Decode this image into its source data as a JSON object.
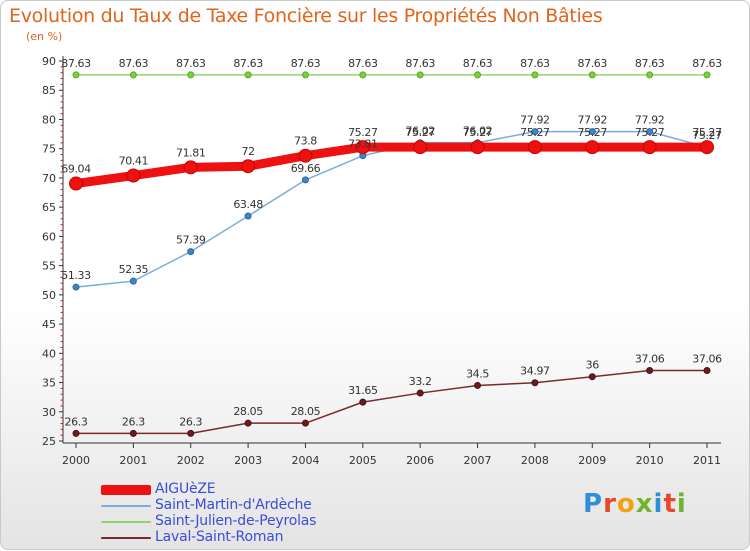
{
  "header": {
    "title": "Evolution du Taux de Taxe Foncière sur les Propriétés Non Bâties",
    "unit_label": "(en %)"
  },
  "brand": {
    "name": "Proxiti",
    "letters": [
      {
        "char": "P",
        "color": "#2e8fd6"
      },
      {
        "char": "r",
        "color": "#e8452c"
      },
      {
        "char": "o",
        "color": "#f3a20b"
      },
      {
        "char": "x",
        "color": "#6fb42b"
      },
      {
        "char": "i",
        "color": "#2e8fd6"
      },
      {
        "char": "t",
        "color": "#e8452c"
      },
      {
        "char": "i",
        "color": "#6fb42b"
      }
    ]
  },
  "chart_data": {
    "type": "line",
    "title": "Evolution du Taux de Taxe Foncière sur les Propriétés Non Bâties",
    "ylabel": "(en %)",
    "xlabel": "",
    "x": [
      "2000",
      "2001",
      "2002",
      "2003",
      "2004",
      "2005",
      "2006",
      "2007",
      "2008",
      "2009",
      "2010",
      "2011"
    ],
    "ylim": [
      25,
      90
    ],
    "yticks": [
      25,
      30,
      35,
      40,
      45,
      50,
      55,
      60,
      65,
      70,
      75,
      80,
      85,
      90
    ],
    "grid": false,
    "legend_position": "bottom-left",
    "series": [
      {
        "name": "AIGUèZE",
        "color": "#ee1111",
        "values": [
          69.04,
          70.41,
          71.81,
          72,
          73.8,
          75.27,
          75.27,
          75.27,
          75.27,
          75.27,
          75.27,
          75.27
        ],
        "labels": [
          "69.04",
          "70.41",
          "71.81",
          "72",
          "73.8",
          "75.27",
          "75.27",
          "75.27",
          "75.27",
          "75.27",
          "75.27",
          "75.27"
        ]
      },
      {
        "name": "Saint-Martin-d'Ardèche",
        "color": "#7aaed8",
        "values": [
          51.33,
          52.35,
          57.39,
          63.48,
          69.66,
          73.81,
          76.02,
          76.02,
          77.92,
          77.92,
          77.92,
          75.27
        ],
        "labels": [
          "51.33",
          "52.35",
          "57.39",
          "63.48",
          "69.66",
          "73.81",
          "76.02",
          "76.02",
          "77.92",
          "77.92",
          "77.92",
          "75.27"
        ]
      },
      {
        "name": "Saint-Julien-de-Peyrolas",
        "color": "#95d36a",
        "values": [
          87.63,
          87.63,
          87.63,
          87.63,
          87.63,
          87.63,
          87.63,
          87.63,
          87.63,
          87.63,
          87.63,
          87.63
        ],
        "labels": [
          "87.63",
          "87.63",
          "87.63",
          "87.63",
          "87.63",
          "87.63",
          "87.63",
          "87.63",
          "87.63",
          "87.63",
          "87.63",
          "87.63"
        ]
      },
      {
        "name": "Laval-Saint-Roman",
        "color": "#7a2a2a",
        "values": [
          26.3,
          26.3,
          26.3,
          28.05,
          28.05,
          31.65,
          33.2,
          34.5,
          34.97,
          36,
          37.06,
          37.06
        ],
        "labels": [
          "26.3",
          "26.3",
          "26.3",
          "28.05",
          "28.05",
          "31.65",
          "33.2",
          "34.5",
          "34.97",
          "36",
          "37.06",
          "37.06"
        ]
      }
    ]
  }
}
